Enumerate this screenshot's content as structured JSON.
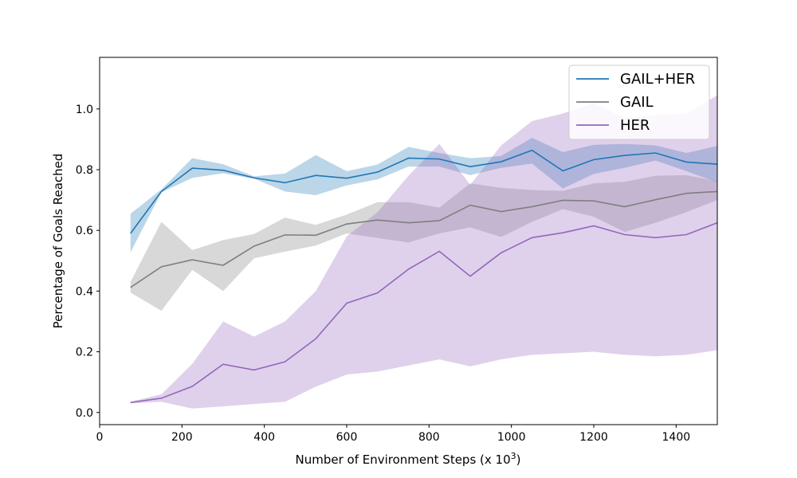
{
  "chart_data": {
    "type": "line",
    "title": "",
    "xlabel_prefix": "Number of Environment Steps (x 10",
    "xlabel_sup": "3",
    "xlabel_suffix": ")",
    "ylabel": "Percentage of Goals Reached",
    "xlim": [
      0,
      1500
    ],
    "ylim": [
      -0.04,
      1.17
    ],
    "xticks": [
      0,
      200,
      400,
      600,
      800,
      1000,
      1200,
      1400
    ],
    "yticks": [
      0.0,
      0.2,
      0.4,
      0.6,
      0.8,
      1.0
    ],
    "ytick_labels": [
      "0.0",
      "0.2",
      "0.4",
      "0.6",
      "0.8",
      "1.0"
    ],
    "grid": false,
    "legend_position": "top-right",
    "x": [
      75,
      150,
      225,
      300,
      375,
      450,
      525,
      600,
      675,
      750,
      825,
      900,
      975,
      1050,
      1125,
      1200,
      1275,
      1350,
      1425,
      1500
    ],
    "series": [
      {
        "name": "GAIL+HER",
        "color": "#1f77b4",
        "values": [
          0.59,
          0.728,
          0.805,
          0.798,
          0.773,
          0.757,
          0.781,
          0.772,
          0.792,
          0.838,
          0.835,
          0.81,
          0.826,
          0.864,
          0.796,
          0.833,
          0.847,
          0.855,
          0.825,
          0.818
        ],
        "upper": [
          0.655,
          0.735,
          0.838,
          0.818,
          0.778,
          0.787,
          0.848,
          0.795,
          0.817,
          0.875,
          0.855,
          0.838,
          0.845,
          0.905,
          0.858,
          0.882,
          0.885,
          0.88,
          0.855,
          0.878
        ],
        "lower": [
          0.528,
          0.725,
          0.773,
          0.788,
          0.77,
          0.728,
          0.716,
          0.748,
          0.768,
          0.81,
          0.81,
          0.782,
          0.806,
          0.82,
          0.738,
          0.786,
          0.806,
          0.83,
          0.795,
          0.758
        ]
      },
      {
        "name": "GAIL",
        "color": "#7f7f7f",
        "values": [
          0.412,
          0.48,
          0.503,
          0.485,
          0.548,
          0.585,
          0.584,
          0.621,
          0.634,
          0.625,
          0.632,
          0.683,
          0.662,
          0.678,
          0.699,
          0.697,
          0.678,
          0.701,
          0.722,
          0.728
        ],
        "upper": [
          0.43,
          0.628,
          0.535,
          0.568,
          0.588,
          0.642,
          0.618,
          0.652,
          0.693,
          0.693,
          0.675,
          0.755,
          0.74,
          0.733,
          0.73,
          0.755,
          0.76,
          0.78,
          0.782,
          0.762
        ],
        "lower": [
          0.395,
          0.335,
          0.47,
          0.4,
          0.508,
          0.53,
          0.55,
          0.59,
          0.575,
          0.56,
          0.59,
          0.61,
          0.578,
          0.628,
          0.67,
          0.645,
          0.595,
          0.625,
          0.66,
          0.7
        ]
      },
      {
        "name": "HER",
        "color": "#9467bd",
        "values": [
          0.033,
          0.047,
          0.086,
          0.159,
          0.14,
          0.167,
          0.243,
          0.36,
          0.394,
          0.472,
          0.531,
          0.449,
          0.526,
          0.576,
          0.592,
          0.615,
          0.586,
          0.576,
          0.586,
          0.625
        ],
        "upper": [
          0.035,
          0.06,
          0.16,
          0.3,
          0.25,
          0.3,
          0.4,
          0.58,
          0.66,
          0.78,
          0.885,
          0.75,
          0.88,
          0.96,
          0.985,
          1.02,
          0.97,
          0.98,
          0.985,
          1.045
        ],
        "lower": [
          0.03,
          0.035,
          0.013,
          0.02,
          0.028,
          0.035,
          0.085,
          0.125,
          0.135,
          0.155,
          0.175,
          0.152,
          0.175,
          0.19,
          0.195,
          0.2,
          0.19,
          0.185,
          0.19,
          0.205
        ]
      }
    ]
  }
}
